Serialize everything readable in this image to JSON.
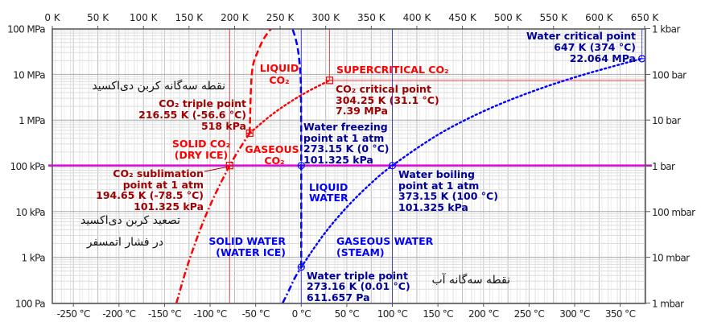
{
  "chart_data": {
    "type": "line",
    "title": "",
    "x_scale": "linear",
    "y_scale": "log",
    "x_range_K": [
      0,
      650
    ],
    "y_range_Pa": [
      100,
      100000000
    ],
    "grid": true,
    "x_top_ticks": [
      {
        "value": 0,
        "label": "0 K"
      },
      {
        "value": 50,
        "label": "50 K"
      },
      {
        "value": 100,
        "label": "100 K"
      },
      {
        "value": 150,
        "label": "150 K"
      },
      {
        "value": 200,
        "label": "200 K"
      },
      {
        "value": 250,
        "label": "250 K"
      },
      {
        "value": 300,
        "label": "300 K"
      },
      {
        "value": 350,
        "label": "350 K"
      },
      {
        "value": 400,
        "label": "400 K"
      },
      {
        "value": 450,
        "label": "450 K"
      },
      {
        "value": 500,
        "label": "500 K"
      },
      {
        "value": 550,
        "label": "550 K"
      },
      {
        "value": 600,
        "label": "600 K"
      },
      {
        "value": 650,
        "label": "650 K"
      }
    ],
    "x_bottom_ticks": [
      {
        "value": -250,
        "label": "-250 °C"
      },
      {
        "value": -200,
        "label": "-200 °C"
      },
      {
        "value": -150,
        "label": "-150 °C"
      },
      {
        "value": -100,
        "label": "-100 °C"
      },
      {
        "value": -50,
        "label": "-50 °C"
      },
      {
        "value": 0,
        "label": "0 °C"
      },
      {
        "value": 50,
        "label": "50 °C"
      },
      {
        "value": 100,
        "label": "100 °C"
      },
      {
        "value": 150,
        "label": "150 °C"
      },
      {
        "value": 200,
        "label": "200 °C"
      },
      {
        "value": 250,
        "label": "250 °C"
      },
      {
        "value": 300,
        "label": "300 °C"
      },
      {
        "value": 350,
        "label": "350 °C"
      }
    ],
    "y_left_ticks": [
      {
        "value": 100000000,
        "label": "100 MPa"
      },
      {
        "value": 10000000,
        "label": "10 MPa"
      },
      {
        "value": 1000000,
        "label": "1 MPa"
      },
      {
        "value": 100000,
        "label": "100 kPa"
      },
      {
        "value": 10000,
        "label": "10 kPa"
      },
      {
        "value": 1000,
        "label": "1 kPa"
      },
      {
        "value": 100,
        "label": "100 Pa"
      }
    ],
    "y_right_ticks": [
      {
        "value": 100000000,
        "label": "1 kbar"
      },
      {
        "value": 10000000,
        "label": "100 bar"
      },
      {
        "value": 1000000,
        "label": "10 bar"
      },
      {
        "value": 100000,
        "label": "1 bar"
      },
      {
        "value": 10000,
        "label": "100 mbar"
      },
      {
        "value": 1000,
        "label": "10 mbar"
      },
      {
        "value": 100,
        "label": "1 mbar"
      }
    ],
    "colors": {
      "co2": "#ff0000",
      "co2_text": "#a00000",
      "water": "#0000ff",
      "water_text": "#000099",
      "atm": "#e000e0"
    },
    "series": [
      {
        "name": "co2-sublimation-curve",
        "color": "#ff0000",
        "dash": "dashdot",
        "points": [
          [
            136.2,
            100
          ],
          [
            150,
            831
          ],
          [
            170,
            9760
          ],
          [
            194.65,
            101325
          ],
          [
            216.55,
            518000
          ]
        ]
      },
      {
        "name": "co2-melting-curve",
        "color": "#ff0000",
        "dash": "dashed",
        "points": [
          [
            216.55,
            518000
          ],
          [
            217,
            1000000
          ],
          [
            218,
            5000000
          ],
          [
            220,
            15000000
          ],
          [
            225,
            30000000
          ],
          [
            232,
            60000000
          ],
          [
            240,
            100000000
          ]
        ]
      },
      {
        "name": "co2-boiling-curve",
        "color": "#ff0000",
        "dash": "dotted",
        "points": [
          [
            216.55,
            518000
          ],
          [
            240,
            1275000
          ],
          [
            260,
            2420000
          ],
          [
            280,
            4190000
          ],
          [
            304.25,
            7390000
          ]
        ]
      },
      {
        "name": "water-sublimation-curve",
        "color": "#0000ff",
        "dash": "dashdot",
        "points": [
          [
            252.8,
            100
          ],
          [
            260,
            196
          ],
          [
            266,
            350
          ],
          [
            273.16,
            611.657
          ]
        ]
      },
      {
        "name": "water-melting-curve",
        "color": "#0000ff",
        "dash": "dashed",
        "points": [
          [
            273.16,
            611.657
          ],
          [
            273.15,
            101325
          ],
          [
            272.9,
            3000000
          ],
          [
            272.3,
            10000000
          ],
          [
            270,
            30000000
          ],
          [
            267,
            60000000
          ],
          [
            263.5,
            100000000
          ]
        ]
      },
      {
        "name": "water-boiling-curve",
        "color": "#0000ff",
        "dash": "dotted",
        "points": [
          [
            273.16,
            611.657
          ],
          [
            298,
            3170
          ],
          [
            323,
            12350
          ],
          [
            348,
            38600
          ],
          [
            373.15,
            101325
          ],
          [
            423,
            476000
          ],
          [
            473,
            1555000
          ],
          [
            523,
            3970000
          ],
          [
            573,
            8590000
          ],
          [
            623,
            16500000
          ],
          [
            647,
            22064000
          ]
        ]
      }
    ],
    "atmospheric_pressure_Pa": 101325,
    "marked_points": [
      {
        "name": "co2-triple-point",
        "K": 216.55,
        "Pa": 518000,
        "shape": "square",
        "color": "#ff0000"
      },
      {
        "name": "co2-sublimation-point",
        "K": 194.65,
        "Pa": 101325,
        "shape": "square",
        "color": "#ff0000"
      },
      {
        "name": "co2-critical-point",
        "K": 304.25,
        "Pa": 7390000,
        "shape": "square",
        "color": "#ff0000"
      },
      {
        "name": "water-freezing-point",
        "K": 273.15,
        "Pa": 101325,
        "shape": "circle",
        "color": "#0000ff"
      },
      {
        "name": "water-boiling-point",
        "K": 373.15,
        "Pa": 101325,
        "shape": "circle",
        "color": "#0000ff"
      },
      {
        "name": "water-triple-point",
        "K": 273.16,
        "Pa": 611.657,
        "shape": "circle",
        "color": "#0000ff"
      },
      {
        "name": "water-critical-point",
        "K": 647,
        "Pa": 22064000,
        "shape": "circle",
        "color": "#0000ff"
      }
    ],
    "annotations": {
      "liquid_co2": [
        "LIQUID",
        "CO₂"
      ],
      "supercritical_co2": "SUPERCRITICAL CO₂",
      "co2_critical": [
        "CO₂ critical point",
        "304.25 K (31.1 °C)",
        "7.39 MPa"
      ],
      "co2_triple_fa": "نقطه سه‌گانه کربن دی‌اکسید",
      "co2_triple": [
        "CO₂ triple point",
        "216.55 K (-56.6 °C)",
        "518 kPa"
      ],
      "solid_co2": [
        "SOLID CO₂",
        "(DRY ICE)"
      ],
      "gaseous_co2": [
        "GASEOUS",
        "CO₂"
      ],
      "water_freezing": [
        "Water freezing",
        "point at 1 atm",
        "273.15 K (0 °C)",
        "101.325 kPa"
      ],
      "co2_sublimation": [
        "CO₂ sublimation",
        "point at 1 atm",
        "194.65 K (-78.5 °C)",
        "101.325 kPa"
      ],
      "liquid_water": [
        "LIQUID",
        "WATER"
      ],
      "water_boiling": [
        "Water boiling",
        "point at 1 atm",
        "373.15 K (100 °C)",
        "101.325 kPa"
      ],
      "co2_sublimation_fa": [
        "تصعید کربن دی‌اکسید",
        "در فشار اتمسفر"
      ],
      "solid_water": [
        "SOLID WATER",
        "(WATER ICE)"
      ],
      "gaseous_water": [
        "GASEOUS WATER",
        "(STEAM)"
      ],
      "water_triple": [
        "Water triple point",
        "273.16 K (0.01 °C)",
        "611.657 Pa"
      ],
      "water_triple_fa": "نقطه سه‌گانه آب",
      "water_critical": [
        "Water critical point",
        "647 K (374 °C)",
        "22.064 MPa"
      ]
    }
  }
}
